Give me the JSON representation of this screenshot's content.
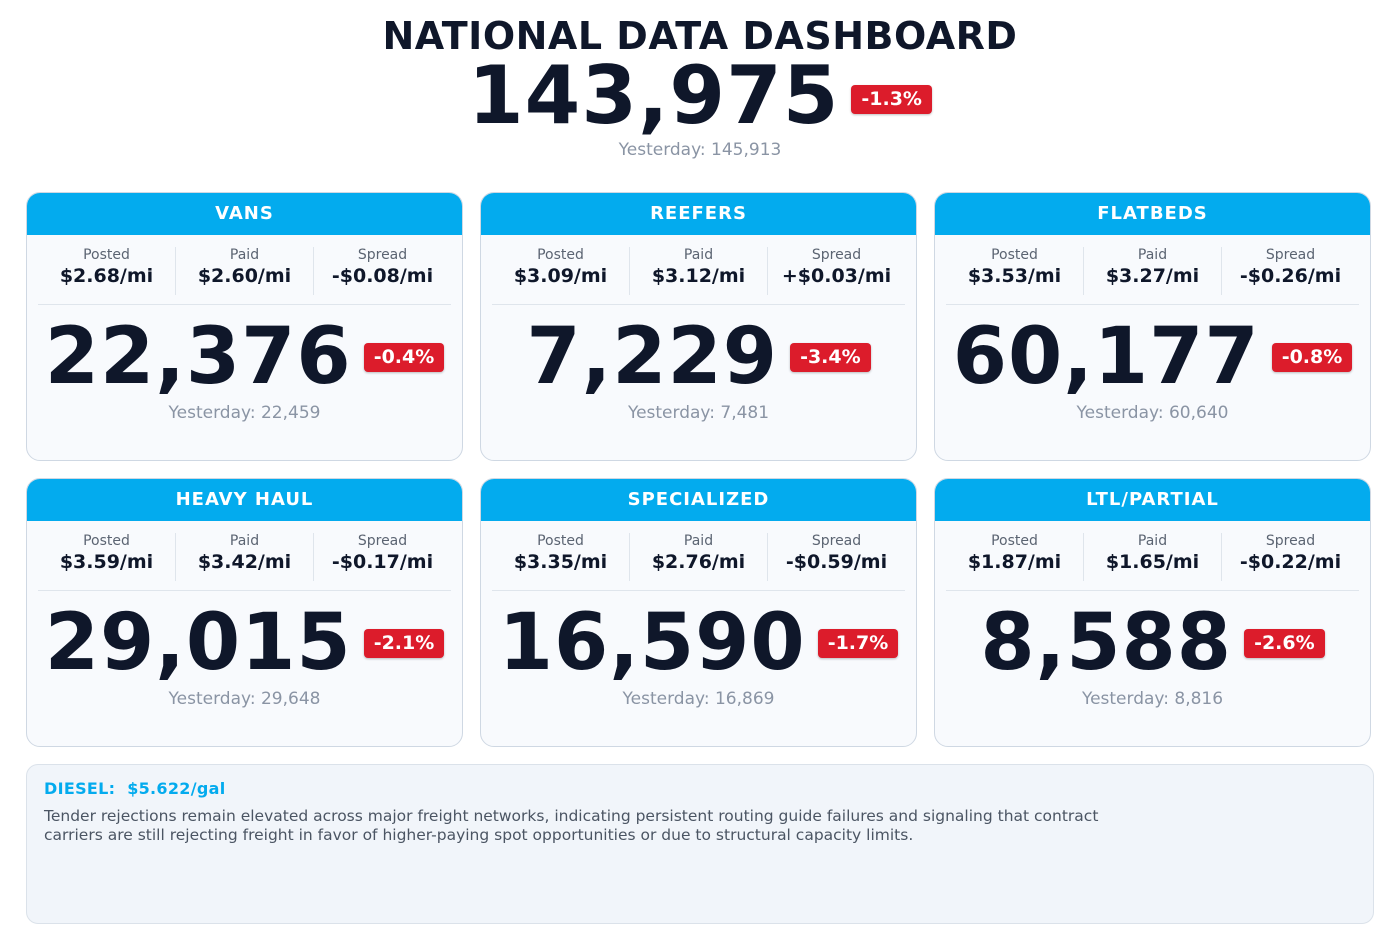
{
  "header": {
    "title": "NATIONAL DATA DASHBOARD",
    "total": "143,975",
    "change": "-1.3%",
    "yesterday": "Yesterday: 145,913"
  },
  "labels": {
    "posted": "Posted",
    "paid": "Paid",
    "spread": "Spread"
  },
  "cards": [
    {
      "name": "VANS",
      "posted": "$2.68/mi",
      "paid": "$2.60/mi",
      "spread": "-$0.08/mi",
      "value": "22,376",
      "change": "-0.4%",
      "yesterday": "Yesterday: 22,459"
    },
    {
      "name": "REEFERS",
      "posted": "$3.09/mi",
      "paid": "$3.12/mi",
      "spread": "+$0.03/mi",
      "value": "7,229",
      "change": "-3.4%",
      "yesterday": "Yesterday: 7,481"
    },
    {
      "name": "FLATBEDS",
      "posted": "$3.53/mi",
      "paid": "$3.27/mi",
      "spread": "-$0.26/mi",
      "value": "60,177",
      "change": "-0.8%",
      "yesterday": "Yesterday: 60,640"
    },
    {
      "name": "HEAVY HAUL",
      "posted": "$3.59/mi",
      "paid": "$3.42/mi",
      "spread": "-$0.17/mi",
      "value": "29,015",
      "change": "-2.1%",
      "yesterday": "Yesterday: 29,648"
    },
    {
      "name": "SPECIALIZED",
      "posted": "$3.35/mi",
      "paid": "$2.76/mi",
      "spread": "-$0.59/mi",
      "value": "16,590",
      "change": "-1.7%",
      "yesterday": "Yesterday: 16,869"
    },
    {
      "name": "LTL/PARTIAL",
      "posted": "$1.87/mi",
      "paid": "$1.65/mi",
      "spread": "-$0.22/mi",
      "value": "8,588",
      "change": "-2.6%",
      "yesterday": "Yesterday: 8,816"
    }
  ],
  "notes": {
    "diesel_label": "DIESEL:",
    "diesel_value": "$5.622/gal",
    "summary": "Tender rejections remain elevated across major freight networks, indicating persistent routing guide failures and signaling that contract carriers are still rejecting freight in favor of higher-paying spot opportunities or due to structural capacity limits."
  },
  "colors": {
    "accent": "#03abee",
    "negative_badge": "#dc1c2b",
    "text_dark": "#0f172a",
    "text_muted": "#8a94a4"
  }
}
